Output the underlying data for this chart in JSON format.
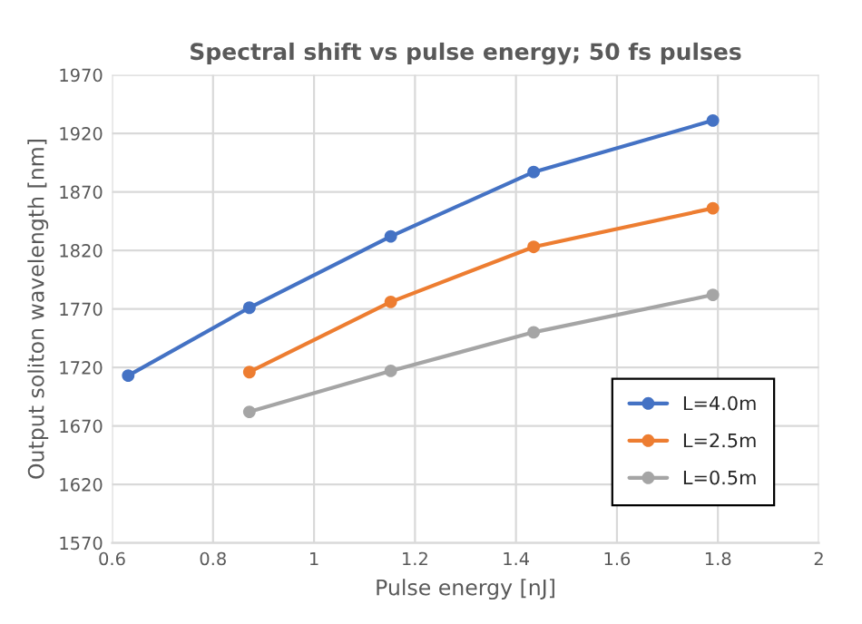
{
  "chart_data": {
    "type": "line",
    "title": "Spectral shift vs pulse energy; 50 fs pulses",
    "xlabel": "Pulse energy [nJ]",
    "ylabel": "Output soliton wavelength [nm]",
    "series": [
      {
        "name": "L=4.0m",
        "color": "#4472c4",
        "x": [
          0.632,
          0.872,
          1.152,
          1.435,
          1.79
        ],
        "values": [
          1713,
          1771,
          1832,
          1887,
          1931
        ]
      },
      {
        "name": "L=2.5m",
        "color": "#ed7d31",
        "x": [
          0.872,
          1.152,
          1.435,
          1.79
        ],
        "values": [
          1716,
          1776,
          1823,
          1856
        ]
      },
      {
        "name": "L=0.5m",
        "color": "#a5a5a5",
        "x": [
          0.872,
          1.152,
          1.435,
          1.79
        ],
        "values": [
          1682,
          1717,
          1750,
          1782
        ]
      }
    ],
    "xlim": [
      0.6,
      2
    ],
    "xticks": [
      {
        "value": 0.6,
        "label": "0.6"
      },
      {
        "value": 0.8,
        "label": "0.8"
      },
      1,
      {
        "value": 1.2,
        "label": "1.2"
      },
      {
        "value": 1.4,
        "label": "1.4"
      },
      {
        "value": 1.6,
        "label": "1.6"
      },
      {
        "value": 1.8,
        "label": "1.8"
      },
      2
    ],
    "ylim": [
      1570,
      1970
    ],
    "yticks": [
      1570,
      1620,
      1670,
      1720,
      1770,
      1820,
      1870,
      1920,
      1970
    ],
    "grid": true,
    "legend": "bottom right",
    "marker": "circle",
    "line_style": "solid"
  }
}
